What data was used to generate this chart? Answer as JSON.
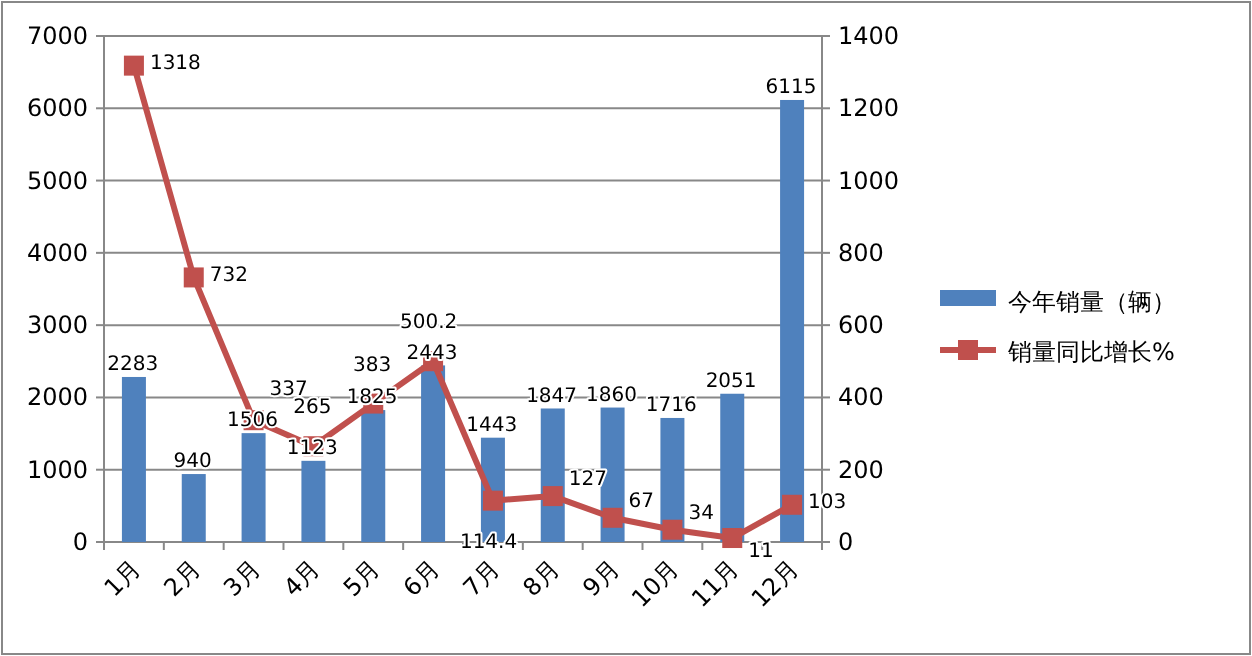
{
  "chart_data": {
    "type": "bar",
    "categories": [
      "1月",
      "2月",
      "3月",
      "4月",
      "5月",
      "6月",
      "7月",
      "8月",
      "9月",
      "10月",
      "11月",
      "12月"
    ],
    "series": [
      {
        "name": "今年销量（辆）",
        "color": "#4f81bd",
        "values": [
          2283,
          940,
          1506,
          1123,
          1825,
          2443,
          1443,
          1847,
          1860,
          1716,
          2051,
          6115
        ]
      },
      {
        "name": "销量同比增长%",
        "type": "line",
        "axis": "y2",
        "color": "#c0504d",
        "marker": "square",
        "values": [
          1318,
          732,
          337,
          265,
          383,
          500.2,
          114.4,
          127,
          67,
          34,
          11,
          103
        ]
      }
    ],
    "ylim": [
      0,
      7000
    ],
    "yticks": [
      0,
      1000,
      2000,
      3000,
      4000,
      5000,
      6000,
      7000
    ],
    "y2lim": [
      0,
      1400
    ],
    "y2ticks": [
      0,
      200,
      400,
      600,
      800,
      1000,
      1200,
      1400
    ],
    "grid": "y",
    "legend": "right",
    "data_labels": true
  }
}
